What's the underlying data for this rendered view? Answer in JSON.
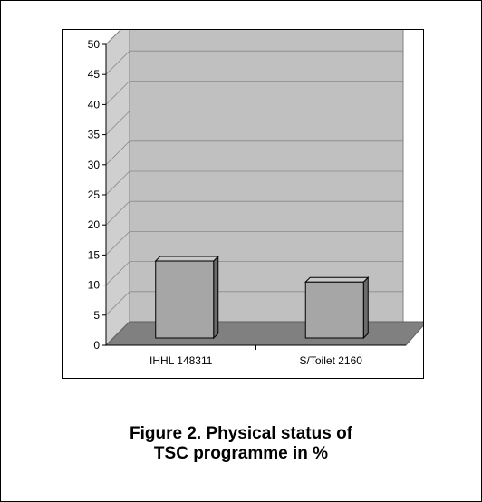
{
  "caption": {
    "line1": "Figure 2. Physical status of",
    "line2": "TSC programme in %"
  },
  "chart_data": {
    "type": "bar",
    "style": "3d",
    "categories": [
      "IHHL 148311",
      "S/Toilet 2160"
    ],
    "values": [
      14,
      10.5
    ],
    "ylim": [
      0,
      50
    ],
    "yticks": [
      0,
      5,
      10,
      15,
      20,
      25,
      30,
      35,
      40,
      45,
      50
    ],
    "grid": true,
    "legend": "none",
    "colors": {
      "bar_front": "#a6a6a6",
      "bar_side": "#6b6b6b",
      "bar_top": "#c8c8c8",
      "wall": "#c0c0c0",
      "side_wall": "#cfcfcf",
      "floor": "#808080",
      "gridline": "#8a8a8a"
    }
  }
}
